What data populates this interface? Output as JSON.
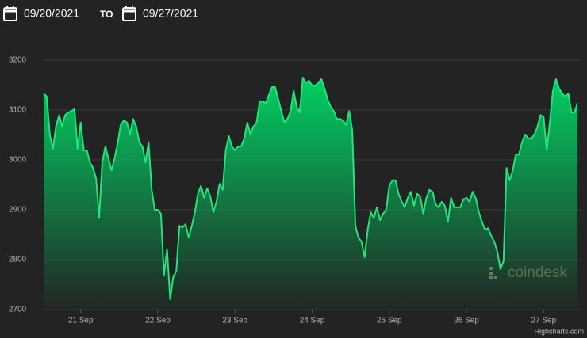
{
  "header": {
    "from": "09/20/2021",
    "to_word": "TO",
    "to": "09/27/2021"
  },
  "chart_data": {
    "type": "area",
    "color": "#1fe57c",
    "watermark": "coindesk",
    "credit": "Highcharts.com",
    "xlim": [
      20.52,
      27.49
    ],
    "xticks": [
      {
        "value": 21,
        "label": "21 Sep"
      },
      {
        "value": 22,
        "label": "22 Sep"
      },
      {
        "value": 23,
        "label": "23 Sep"
      },
      {
        "value": 24,
        "label": "24 Sep"
      },
      {
        "value": 25,
        "label": "25 Sep"
      },
      {
        "value": 26,
        "label": "26 Sep"
      },
      {
        "value": 27,
        "label": "27 Sep"
      }
    ],
    "ylim": [
      2700,
      3200
    ],
    "yticks": [
      2700,
      2800,
      2900,
      3000,
      3100,
      3200
    ],
    "grid": true,
    "x": [
      20.52,
      20.56,
      20.6,
      20.64,
      20.68,
      20.72,
      20.76,
      20.8,
      20.84,
      20.88,
      20.92,
      20.96,
      21.0,
      21.04,
      21.08,
      21.12,
      21.16,
      21.2,
      21.24,
      21.28,
      21.32,
      21.36,
      21.4,
      21.44,
      21.48,
      21.52,
      21.56,
      21.6,
      21.64,
      21.68,
      21.72,
      21.76,
      21.8,
      21.84,
      21.88,
      21.92,
      21.96,
      22.0,
      22.04,
      22.08,
      22.12,
      22.16,
      22.2,
      22.24,
      22.28,
      22.32,
      22.36,
      22.4,
      22.44,
      22.48,
      22.52,
      22.56,
      22.6,
      22.64,
      22.68,
      22.72,
      22.76,
      22.8,
      22.84,
      22.88,
      22.92,
      22.96,
      23.0,
      23.04,
      23.08,
      23.12,
      23.16,
      23.2,
      23.24,
      23.28,
      23.32,
      23.36,
      23.4,
      23.44,
      23.48,
      23.52,
      23.56,
      23.6,
      23.64,
      23.68,
      23.72,
      23.76,
      23.8,
      23.84,
      23.88,
      23.92,
      23.96,
      24.0,
      24.04,
      24.08,
      24.12,
      24.16,
      24.2,
      24.24,
      24.28,
      24.32,
      24.36,
      24.4,
      24.44,
      24.48,
      24.52,
      24.56,
      24.6,
      24.64,
      24.68,
      24.72,
      24.76,
      24.8,
      24.84,
      24.88,
      24.92,
      24.96,
      25.0,
      25.04,
      25.08,
      25.12,
      25.16,
      25.2,
      25.24,
      25.28,
      25.32,
      25.36,
      25.4,
      25.44,
      25.48,
      25.52,
      25.56,
      25.6,
      25.64,
      25.68,
      25.72,
      25.76,
      25.8,
      25.84,
      25.88,
      25.92,
      25.96,
      26.0,
      26.04,
      26.08,
      26.12,
      26.16,
      26.2,
      26.24,
      26.28,
      26.32,
      26.36,
      26.4,
      26.44,
      26.48,
      26.52,
      26.56,
      26.6,
      26.64,
      26.68,
      26.72,
      26.76,
      26.8,
      26.84,
      26.88,
      26.92,
      26.96,
      27.0,
      27.04,
      27.08,
      27.12,
      27.16,
      27.2,
      27.24,
      27.28,
      27.32,
      27.36,
      27.4,
      27.44
    ],
    "values": [
      3133,
      3127,
      3051,
      3022,
      3067,
      3090,
      3067,
      3090,
      3095,
      3098,
      3102,
      3022,
      3075,
      3019,
      3019,
      2995,
      2984,
      2963,
      2884,
      2995,
      3027,
      3003,
      2979,
      3003,
      3035,
      3071,
      3079,
      3075,
      3051,
      3082,
      3067,
      3035,
      3027,
      2995,
      3035,
      2940,
      2900,
      2900,
      2892,
      2768,
      2821,
      2721,
      2765,
      2778,
      2868,
      2865,
      2871,
      2844,
      2868,
      2895,
      2932,
      2948,
      2924,
      2943,
      2927,
      2895,
      2916,
      2952,
      2940,
      3019,
      3048,
      3027,
      3019,
      3027,
      3027,
      3043,
      3075,
      3051,
      3067,
      3075,
      3117,
      3117,
      3114,
      3130,
      3146,
      3146,
      3122,
      3098,
      3075,
      3082,
      3098,
      3138,
      3106,
      3095,
      3165,
      3154,
      3159,
      3149,
      3149,
      3154,
      3162,
      3143,
      3122,
      3106,
      3098,
      3082,
      3082,
      3079,
      3070,
      3098,
      3059,
      2868,
      2844,
      2836,
      2805,
      2860,
      2895,
      2884,
      2905,
      2879,
      2892,
      2900,
      2948,
      2959,
      2959,
      2932,
      2916,
      2905,
      2924,
      2936,
      2908,
      2932,
      2927,
      2892,
      2924,
      2940,
      2936,
      2911,
      2905,
      2916,
      2908,
      2876,
      2924,
      2905,
      2905,
      2905,
      2921,
      2924,
      2916,
      2936,
      2924,
      2895,
      2876,
      2860,
      2863,
      2848,
      2836,
      2816,
      2781,
      2797,
      2984,
      2959,
      2979,
      3011,
      3011,
      3035,
      3051,
      3043,
      3043,
      3051,
      3067,
      3090,
      3086,
      3019,
      3075,
      3138,
      3162,
      3143,
      3133,
      3127,
      3133,
      3095,
      3095,
      3114
    ]
  }
}
